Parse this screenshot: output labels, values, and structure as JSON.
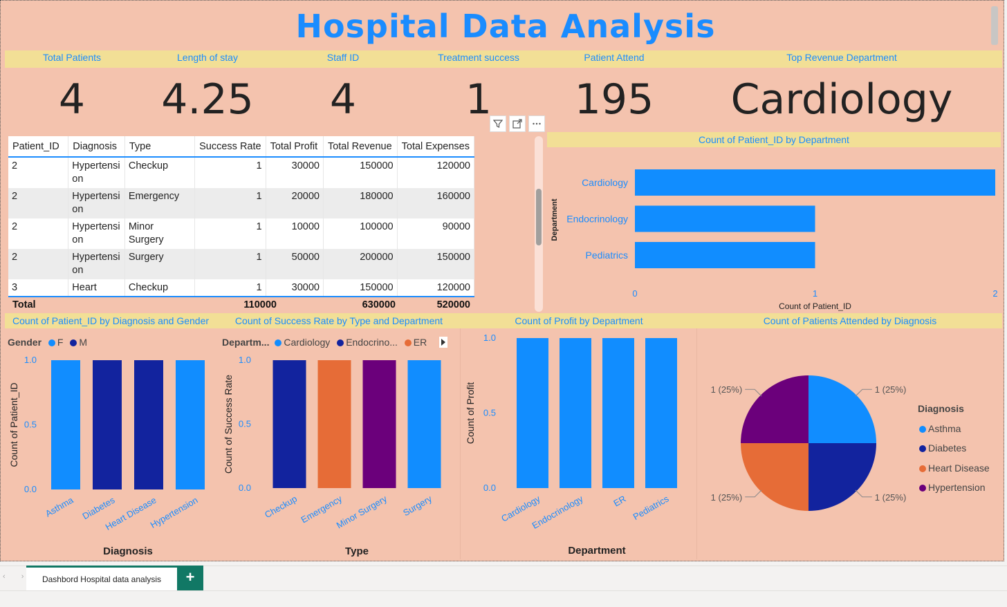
{
  "report_title": "Hospital Data Analysis",
  "kpis": [
    {
      "label": "Total Patients",
      "value": "4"
    },
    {
      "label": "Length of stay",
      "value": "4.25"
    },
    {
      "label": "Staff ID",
      "value": "4"
    },
    {
      "label": "Treatment success",
      "value": "1"
    },
    {
      "label": "Patient Attend",
      "value": "195"
    },
    {
      "label": "Top Revenue Department",
      "value": "Cardiology"
    }
  ],
  "visual_header_icons": [
    "filter-icon",
    "focus-mode-icon",
    "more-options-icon"
  ],
  "table": {
    "columns": [
      "Patient_ID",
      "Diagnosis",
      "Type",
      "Success Rate",
      "Total Profit",
      "Total Revenue",
      "Total Expenses"
    ],
    "rows": [
      [
        "2",
        "Hypertensi\non",
        "Checkup",
        "1",
        "30000",
        "150000",
        "120000"
      ],
      [
        "2",
        "Hypertensi\non",
        "Emergency",
        "1",
        "20000",
        "180000",
        "160000"
      ],
      [
        "2",
        "Hypertensi\non",
        "Minor Surgery",
        "1",
        "10000",
        "100000",
        "90000"
      ],
      [
        "2",
        "Hypertensi\non",
        "Surgery",
        "1",
        "50000",
        "200000",
        "150000"
      ],
      [
        "3",
        "Heart\nDisease",
        "Checkup",
        "1",
        "30000",
        "150000",
        "120000"
      ]
    ],
    "total": {
      "label": "Total",
      "profit": "110000",
      "revenue": "630000",
      "expenses": "520000"
    }
  },
  "colors": {
    "blue": "#118dff",
    "navy": "#12239e",
    "orange": "#e66c37",
    "purple": "#6b007b",
    "band": "#f2df96",
    "bg": "#f4c3ae"
  },
  "chart_data": [
    {
      "type": "bar",
      "orientation": "horizontal",
      "title": "Count of Patient_ID by Department",
      "categories": [
        "Cardiology",
        "Endocrinology",
        "Pediatrics"
      ],
      "values": [
        2,
        1,
        1
      ],
      "xlabel": "Count of Patient_ID",
      "ylabel": "Department",
      "xlim": [
        0,
        2
      ],
      "xticks": [
        "0",
        "1",
        "2"
      ]
    },
    {
      "type": "bar",
      "title": "Count of Patient_ID by Diagnosis and Gender",
      "legend_title": "Gender",
      "legend": [
        {
          "name": "F",
          "color": "#118dff"
        },
        {
          "name": "M",
          "color": "#12239e"
        }
      ],
      "categories": [
        "Asthma",
        "Diabetes",
        "Heart Disease",
        "Hypertension"
      ],
      "values": [
        1,
        1,
        1,
        1
      ],
      "bar_colors": [
        "#118dff",
        "#12239e",
        "#12239e",
        "#118dff"
      ],
      "xlabel": "Diagnosis",
      "ylabel": "Count of Patient_ID",
      "ylim": [
        0,
        1
      ],
      "yticks": [
        "0.0",
        "0.5",
        "1.0"
      ]
    },
    {
      "type": "bar",
      "title": "Count of Success Rate by Type and Department",
      "legend_title": "Departm...",
      "legend": [
        {
          "name": "Cardiology",
          "color": "#118dff"
        },
        {
          "name": "Endocrino...",
          "color": "#12239e"
        },
        {
          "name": "ER",
          "color": "#e66c37"
        }
      ],
      "categories": [
        "Checkup",
        "Emergency",
        "Minor Surgery",
        "Surgery"
      ],
      "values": [
        1,
        1,
        1,
        1
      ],
      "bar_colors": [
        "#12239e",
        "#e66c37",
        "#6b007b",
        "#118dff"
      ],
      "xlabel": "Type",
      "ylabel": "Count of Success Rate",
      "ylim": [
        0,
        1
      ],
      "yticks": [
        "0.0",
        "0.5",
        "1.0"
      ]
    },
    {
      "type": "bar",
      "title": "Count of Profit by Department",
      "categories": [
        "Cardiology",
        "Endocrinology",
        "ER",
        "Pediatrics"
      ],
      "values": [
        1,
        1,
        1,
        1
      ],
      "bar_colors": [
        "#118dff",
        "#118dff",
        "#118dff",
        "#118dff"
      ],
      "xlabel": "Department",
      "ylabel": "Count of Profit",
      "ylim": [
        0,
        1
      ],
      "yticks": [
        "0.0",
        "0.5",
        "1.0"
      ]
    },
    {
      "type": "pie",
      "title": "Count of Patients Attended by Diagnosis",
      "legend_title": "Diagnosis",
      "slices": [
        {
          "name": "Asthma",
          "value": 1,
          "label": "1 (25%)",
          "color": "#118dff"
        },
        {
          "name": "Diabetes",
          "value": 1,
          "label": "1 (25%)",
          "color": "#12239e"
        },
        {
          "name": "Heart Disease",
          "value": 1,
          "label": "1 (25%)",
          "color": "#e66c37"
        },
        {
          "name": "Hypertension",
          "value": 1,
          "label": "1 (25%)",
          "color": "#6b007b"
        }
      ]
    }
  ],
  "pages": {
    "active_tab": "Dashbord Hospital data analysis",
    "add_label": "+"
  }
}
